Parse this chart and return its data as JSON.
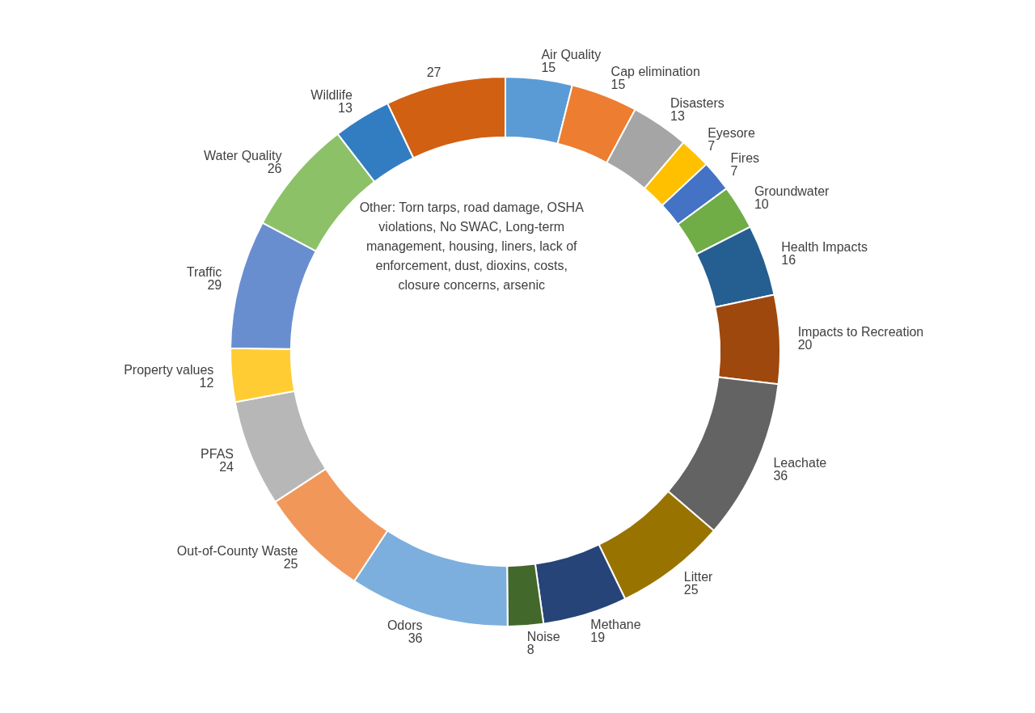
{
  "chart_data": {
    "type": "donut",
    "data_labels": true,
    "categories": [
      "Air Quality",
      "Cap elimination",
      "Disasters",
      "Eyesore",
      "Fires",
      "Groundwater",
      "Health Impacts",
      "Impacts to Recreation",
      "Leachate",
      "Litter",
      "Methane",
      "Noise",
      "Odors",
      "Out-of-County Waste",
      "PFAS",
      "Property values",
      "Traffic",
      "Water Quality",
      "Wildlife",
      "Other: Torn tarps, road damage, OSHA violations, No SWAC, Long-term management, housing, liners, lack of enforcement, dust, dioxins, costs, closure concerns, arsenic"
    ],
    "values": [
      15,
      15,
      13,
      7,
      7,
      10,
      16,
      20,
      36,
      25,
      19,
      8,
      36,
      25,
      24,
      12,
      29,
      26,
      13,
      27
    ],
    "colors": [
      "#5b9bd5",
      "#ed7d31",
      "#a5a5a5",
      "#ffc000",
      "#4472c4",
      "#70ad47",
      "#255e91",
      "#9e480e",
      "#636363",
      "#997300",
      "#264478",
      "#43682b",
      "#7cafdd",
      "#f1975a",
      "#b7b7b7",
      "#ffcd33",
      "#698ed0",
      "#8cc168",
      "#327dc2",
      "#d26012"
    ]
  }
}
